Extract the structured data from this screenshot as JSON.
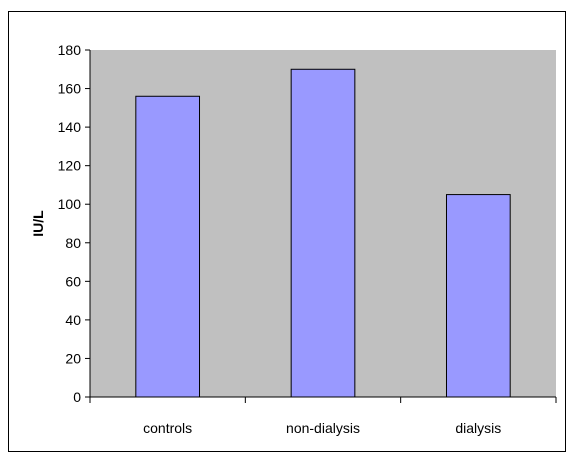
{
  "chart_data": {
    "type": "bar",
    "title": "",
    "xlabel": "",
    "ylabel": "IU/L",
    "categories": [
      "controls",
      "non-dialysis",
      "dialysis"
    ],
    "values": [
      156,
      170,
      105
    ],
    "ylim": [
      0,
      180
    ],
    "yticks": [
      "0",
      "20",
      "40",
      "60",
      "80",
      "100",
      "120",
      "140",
      "160",
      "180"
    ],
    "grid": false,
    "legend": "none",
    "colors": {
      "plot_background": "#c0c0c0",
      "bar_fill": "#9999ff",
      "bar_stroke": "#000000"
    }
  }
}
